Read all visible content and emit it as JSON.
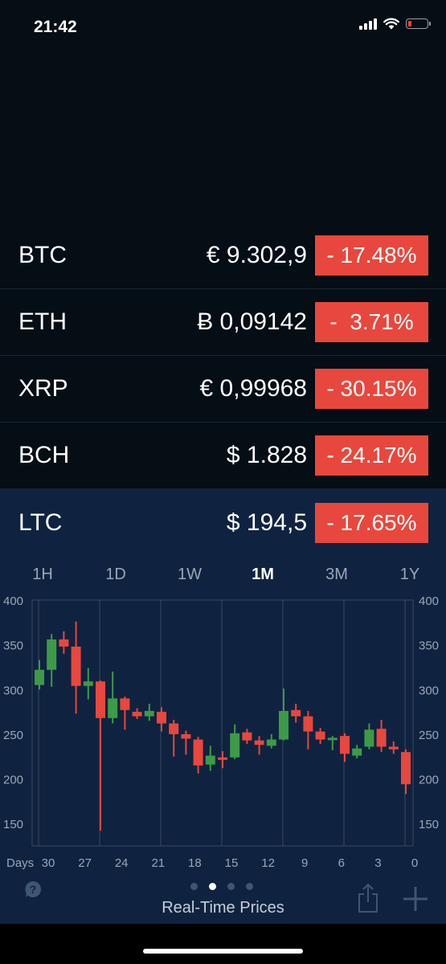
{
  "status_bar": {
    "time": "21:42"
  },
  "tickers": [
    {
      "symbol": "BTC",
      "price": "€ 9.302,9",
      "change": "- 17.48%",
      "selected": false
    },
    {
      "symbol": "ETH",
      "price": "Ƀ 0,09142",
      "change": "-  3.71%",
      "selected": false
    },
    {
      "symbol": "XRP",
      "price": "€ 0,99968",
      "change": "- 30.15%",
      "selected": false
    },
    {
      "symbol": "BCH",
      "price": "$ 1.828",
      "change": "- 24.17%",
      "selected": false
    },
    {
      "symbol": "LTC",
      "price": "$ 194,5",
      "change": "- 17.65%",
      "selected": true
    }
  ],
  "range_tabs": [
    "1H",
    "1D",
    "1W",
    "1M",
    "3M",
    "1Y"
  ],
  "active_range": "1M",
  "colors": {
    "background": "#050d15",
    "panel": "#0f2340",
    "badge_negative": "#e8473d",
    "candle_up": "#3d9a46",
    "candle_down": "#e8473d"
  },
  "chart_data": {
    "type": "candlestick",
    "y_ticks": [
      "400",
      "350",
      "300",
      "250",
      "200",
      "150"
    ],
    "y_range": [
      125,
      400
    ],
    "x_axis_label": "Days",
    "x_ticks": [
      "30",
      "27",
      "24",
      "21",
      "18",
      "15",
      "12",
      "9",
      "6",
      "3",
      "0"
    ],
    "candles": [
      {
        "day": 30,
        "open": 305,
        "close": 322,
        "high": 333,
        "low": 300
      },
      {
        "day": 29,
        "open": 322,
        "close": 356,
        "high": 362,
        "low": 303
      },
      {
        "day": 28,
        "open": 356,
        "close": 348,
        "high": 365,
        "low": 340
      },
      {
        "day": 27,
        "open": 348,
        "close": 304,
        "high": 376,
        "low": 273
      },
      {
        "day": 26,
        "open": 304,
        "close": 309,
        "high": 324,
        "low": 289
      },
      {
        "day": 25,
        "open": 309,
        "close": 268,
        "high": 310,
        "low": 142
      },
      {
        "day": 24,
        "open": 268,
        "close": 290,
        "high": 320,
        "low": 262
      },
      {
        "day": 23,
        "open": 290,
        "close": 277,
        "high": 292,
        "low": 255
      },
      {
        "day": 22,
        "open": 275,
        "close": 270,
        "high": 279,
        "low": 267
      },
      {
        "day": 21,
        "open": 270,
        "close": 276,
        "high": 284,
        "low": 265
      },
      {
        "day": 20,
        "open": 275,
        "close": 262,
        "high": 280,
        "low": 253
      },
      {
        "day": 19,
        "open": 262,
        "close": 250,
        "high": 266,
        "low": 225
      },
      {
        "day": 18,
        "open": 250,
        "close": 245,
        "high": 254,
        "low": 227
      },
      {
        "day": 17,
        "open": 244,
        "close": 215,
        "high": 247,
        "low": 206
      },
      {
        "day": 16,
        "open": 216,
        "close": 226,
        "high": 237,
        "low": 209
      },
      {
        "day": 15,
        "open": 224,
        "close": 222,
        "high": 231,
        "low": 212
      },
      {
        "day": 14,
        "open": 224,
        "close": 251,
        "high": 261,
        "low": 222
      },
      {
        "day": 13,
        "open": 252,
        "close": 243,
        "high": 256,
        "low": 239
      },
      {
        "day": 12,
        "open": 243,
        "close": 238,
        "high": 248,
        "low": 227
      },
      {
        "day": 11,
        "open": 237,
        "close": 244,
        "high": 250,
        "low": 234
      },
      {
        "day": 10,
        "open": 244,
        "close": 276,
        "high": 301,
        "low": 243
      },
      {
        "day": 9,
        "open": 277,
        "close": 270,
        "high": 284,
        "low": 263
      },
      {
        "day": 8,
        "open": 270,
        "close": 253,
        "high": 276,
        "low": 233
      },
      {
        "day": 7,
        "open": 253,
        "close": 244,
        "high": 257,
        "low": 239
      },
      {
        "day": 6,
        "open": 245,
        "close": 246,
        "high": 248,
        "low": 232
      },
      {
        "day": 5,
        "open": 248,
        "close": 228,
        "high": 251,
        "low": 219
      },
      {
        "day": 4,
        "open": 226,
        "close": 234,
        "high": 238,
        "low": 223
      },
      {
        "day": 3,
        "open": 236,
        "close": 255,
        "high": 262,
        "low": 233
      },
      {
        "day": 2,
        "open": 256,
        "close": 236,
        "high": 266,
        "low": 230
      },
      {
        "day": 1,
        "open": 236,
        "close": 233,
        "high": 242,
        "low": 228
      },
      {
        "day": 0,
        "open": 230,
        "close": 194,
        "high": 233,
        "low": 183
      }
    ]
  },
  "pager": {
    "count": 4,
    "active_index": 1
  },
  "caption": "Real-Time Prices",
  "icons": {
    "help": "help-icon",
    "share": "share-icon",
    "add": "add-icon"
  }
}
